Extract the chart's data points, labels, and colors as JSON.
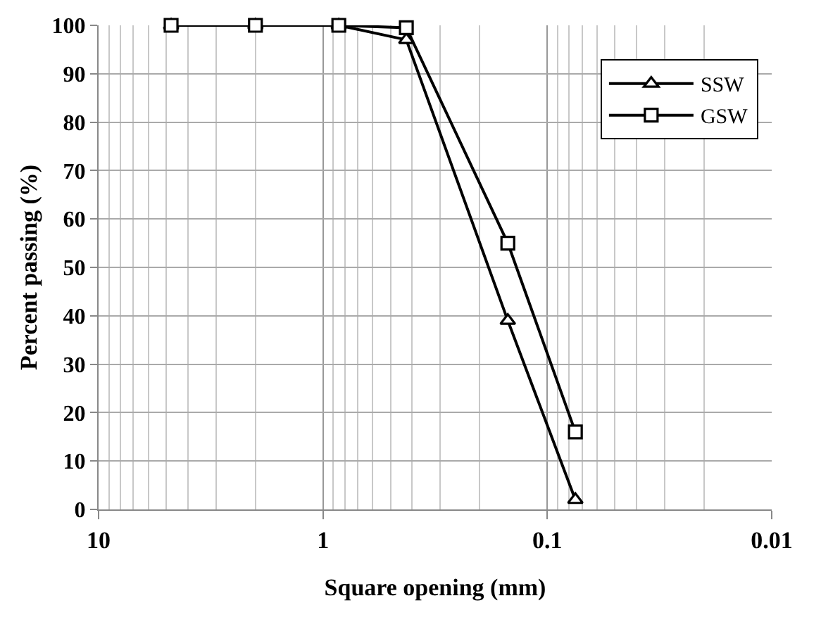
{
  "chart_data": {
    "type": "line",
    "xlabel": "Square opening (mm)",
    "ylabel": "Percent passing (%)",
    "x": [
      4.75,
      2,
      0.85,
      0.425,
      0.15,
      0.075
    ],
    "series": [
      {
        "name": "SSW",
        "color": "#000000",
        "marker": "triangle",
        "values": [
          100,
          100,
          100,
          97,
          39,
          2
        ]
      },
      {
        "name": "GSW",
        "color": "#000000",
        "marker": "square",
        "values": [
          100,
          100,
          100,
          99.5,
          55,
          16
        ]
      }
    ],
    "log": "x",
    "xlim": [
      10,
      0.01
    ],
    "xticks": [
      10,
      1,
      0.1,
      0.01
    ],
    "ylim": [
      0,
      100
    ],
    "yticks": [
      0,
      10,
      20,
      30,
      40,
      50,
      60,
      70,
      80,
      90,
      100
    ],
    "grid": true,
    "legend": "top right",
    "line_style": "solid"
  }
}
